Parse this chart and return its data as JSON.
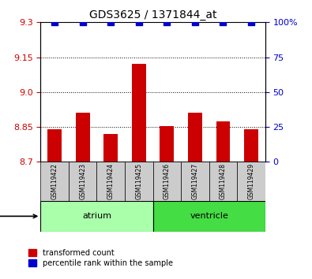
{
  "title": "GDS3625 / 1371844_at",
  "samples": [
    "GSM119422",
    "GSM119423",
    "GSM119424",
    "GSM119425",
    "GSM119426",
    "GSM119427",
    "GSM119428",
    "GSM119429"
  ],
  "bar_values": [
    8.84,
    8.91,
    8.82,
    9.12,
    8.855,
    8.91,
    8.875,
    8.84
  ],
  "percentile_values": [
    100,
    100,
    100,
    100,
    100,
    100,
    100,
    100
  ],
  "ymin": 8.7,
  "ymax": 9.3,
  "yticks": [
    8.7,
    8.85,
    9.0,
    9.15,
    9.3
  ],
  "y2min": 0,
  "y2max": 100,
  "y2ticks": [
    0,
    25,
    50,
    75,
    100
  ],
  "bar_color": "#cc0000",
  "dot_color": "#0000cc",
  "grid_color": "#000000",
  "tissue_groups": [
    {
      "label": "atrium",
      "start": 0,
      "end": 3,
      "color": "#aaffaa"
    },
    {
      "label": "ventricle",
      "start": 4,
      "end": 7,
      "color": "#44dd44"
    }
  ],
  "bar_width": 0.5,
  "sample_box_color": "#cccccc",
  "legend_items": [
    {
      "label": "transformed count",
      "color": "#cc0000",
      "marker": "s"
    },
    {
      "label": "percentile rank within the sample",
      "color": "#0000cc",
      "marker": "s"
    }
  ]
}
